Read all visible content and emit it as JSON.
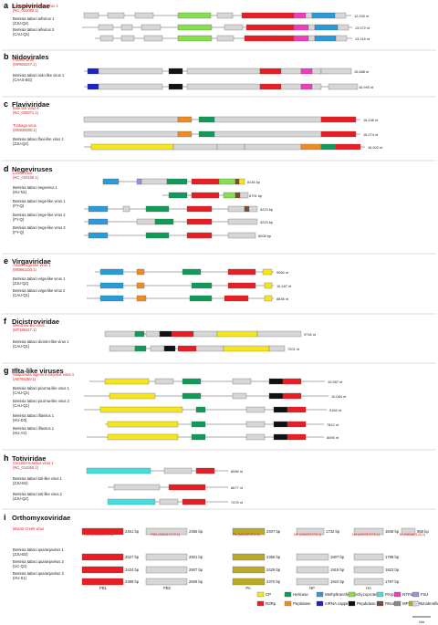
{
  "colors": {
    "CP": "#f5e51e",
    "Helicase": "#119a5a",
    "Methyltransferase": "#2a9ad8",
    "Glycoprotein": "#86df4e",
    "PArp": "#45dede",
    "NTPase": "#ee3fb6",
    "FtsJ": "#9d92d6",
    "PA": "#b8ab27",
    "RdRp": "#ea1c24",
    "Peptidase": "#f08a24",
    "mRNA capping": "#1e22c4",
    "Pepdidase": "#111111",
    "RNase": "#7b4a36",
    "MP": "#888888",
    "Unidentified": "#d6d6d6"
  },
  "panels": [
    {
      "letter": "a",
      "title": "Lispiviridae",
      "rows": [
        {
          "lines": [
            "Sonnie elder shrimp virus 4",
            "(NC_031080.1)"
          ],
          "red": true,
          "length": "12,930 nt"
        },
        {
          "lines": [
            "Bemisia tabaci arlivirus 1",
            "(ZJU-Q2)"
          ],
          "red": false,
          "length": "13,972 nt"
        },
        {
          "lines": [
            "Bemisia tabaci arlivirus 2",
            "(CAU-Q1)"
          ],
          "red": false,
          "length": "13,118 nt"
        }
      ]
    },
    {
      "letter": "b",
      "title": "Nidovirales",
      "rows": [
        {
          "lines": [
            "Fusfish virus",
            "(MF860247.1)"
          ],
          "red": true,
          "length": "15,888 nt"
        },
        {
          "lines": [
            "Bemisia tabaci nido-like virus 1",
            "(CAAS-BG)"
          ],
          "red": false,
          "length": "16,995 nt"
        }
      ]
    },
    {
      "letter": "c",
      "title": "Flaviviridae",
      "rows": [
        {
          "lines": [
            "Bole tick virus 4",
            "(NC_028371.1)"
          ],
          "red": true,
          "length": "16,246 nt"
        },
        {
          "lines": [
            "Trinbago virus",
            "(MN025500.1)"
          ],
          "red": true,
          "length": "16,274 nt"
        },
        {
          "lines": [
            "Bemisia tabaci flavi-like virus 1",
            "(ZJU-Q2)"
          ],
          "red": false,
          "length": "16,902 nt"
        }
      ]
    },
    {
      "letter": "d",
      "title": "Negeviruses",
      "rows": [
        {
          "lines": [
            "Loreto virus",
            "(NC_034158.1)"
          ],
          "red": true,
          "length": "8136 bp"
        },
        {
          "lines": [
            "Bemisia tabaci negevirus 1",
            "(HU-N1)"
          ],
          "red": false,
          "length": "6791 bp"
        },
        {
          "lines": [
            "Bemisia tabaci nege-like virus 1",
            "(FY-Q)"
          ],
          "red": false,
          "length": "9223 bp"
        },
        {
          "lines": [
            "Bemisia tabaci nege-like virus 2",
            "(FY-Q)"
          ],
          "red": false,
          "length": "9229 bp"
        },
        {
          "lines": [
            "Bemisia tabaci nege-like virus 3",
            "(FY-Q)"
          ],
          "red": false,
          "length": "8008 bp"
        }
      ]
    },
    {
      "letter": "e",
      "title": "Virgaviridae",
      "rows": [
        {
          "lines": [
            "Atrato virga-like virus 1",
            "(MN661103.1)"
          ],
          "red": true,
          "length": "9066 nt"
        },
        {
          "lines": [
            "Bemisia tabaci virga-like virus 1",
            "(ZJU-Q2)"
          ],
          "red": false,
          "length": "10,187 nt"
        },
        {
          "lines": [
            "Bemisia tabaci virga-like virus 2",
            "(CAU-Q1)"
          ],
          "red": false,
          "length": "8836 nt"
        }
      ]
    },
    {
      "letter": "f",
      "title": "Dicistroviridae",
      "rows": [
        {
          "lines": [
            "Wenzhou-like virus",
            "(MT186417.1)"
          ],
          "red": true,
          "length": "9716 nt"
        },
        {
          "lines": [
            "Bemisia tabaci dicistro-like virus 1",
            "(CAU-Q1)"
          ],
          "red": false,
          "length": "7201 nt"
        }
      ]
    },
    {
      "letter": "g",
      "title": "Iflta-like viruses",
      "rows": [
        {
          "lines": [
            "Nilaparvata lugens honeydew virus-1",
            "(AB766259.1)"
          ],
          "red": true,
          "length": "10,987 nt"
        },
        {
          "lines": [
            "Bemisia tabaci picorna-like virus 1",
            "(CAU-Q1)"
          ],
          "red": false,
          "length": "10,084 nt"
        },
        {
          "lines": [
            "Bemisia tabaci picorna-like virus 2",
            "(CAU-Q1)"
          ],
          "red": false,
          "length": "9184 nt"
        },
        {
          "lines": [
            "Bemisia tabaci iflavirus 1",
            "(HU-D3)"
          ],
          "red": false,
          "length": "7812 nt"
        },
        {
          "lines": [
            "Bemisia tabaci iflavirus 1",
            "(HU-A2)"
          ],
          "red": false,
          "length": "8495 nt"
        }
      ]
    },
    {
      "letter": "h",
      "title": "Totiviridae",
      "rows": [
        {
          "lines": [
            "Circulifer tenellus virus 1",
            "(NC_014360.1)"
          ],
          "red": true,
          "length": "8086 nt"
        },
        {
          "lines": [
            "Bemisia tabaci toti-like virus 1",
            "(ZJU-B4)"
          ],
          "red": false,
          "length": "6677 nt"
        },
        {
          "lines": [
            "Bemisia tabaci toti-like virus 2",
            "(ZJU-Q2)"
          ],
          "red": false,
          "length": "7478 nt"
        }
      ]
    },
    {
      "letter": "i",
      "title": "Orthomyxoviridae",
      "rows": [
        {
          "lines": [
            "Mason Creek virus"
          ],
          "red": true,
          "segments": [
            "2451 bp",
            "2465 bp",
            "2407 bp",
            "1732 bp",
            "1848 bp",
            "968 bp"
          ]
        },
        {
          "lines": [
            "Bemisia tabaci quaranjavirus 1",
            "(ZJU-B3)"
          ],
          "red": false,
          "segments": [
            "2527 bp",
            "2501 bp",
            "2366 bp",
            "1807 bp",
            "1788 bp"
          ]
        },
        {
          "lines": [
            "Bemisia tabaci quaranjavirus 2",
            "(UC-Q1)"
          ],
          "red": false,
          "segments": [
            "2424 bp",
            "2507 bp",
            "2429 bp",
            "1919 bp",
            "1823 bp"
          ]
        },
        {
          "lines": [
            "Bemisia tabaci quaranjavirus 3",
            "(HU-S1)"
          ],
          "red": false,
          "segments": [
            "2399 bp",
            "2509 bp",
            "2370 bp",
            "1922 bp",
            "1787 bp"
          ]
        }
      ]
    }
  ],
  "ortho_accessions": [
    "PB1 (MK037473.1)",
    "PB2 (MK037472.1)",
    "PA (MK037474.1)",
    "NP (MK037476.1)",
    "HA (MK037478.1)",
    "M (MK460145.1)"
  ],
  "ortho_columns": [
    "PB1",
    "PB2",
    "PA",
    "NP",
    "HA"
  ],
  "legend": [
    {
      "label": "CP",
      "key": "CP"
    },
    {
      "label": "Helicase",
      "key": "Helicase"
    },
    {
      "label": "Methyltransferase",
      "key": "Methyltransferase"
    },
    {
      "label": "Glycoprotein",
      "key": "Glycoprotein"
    },
    {
      "label": "PArp",
      "key": "PArp"
    },
    {
      "label": "NTPase",
      "key": "NTPase"
    },
    {
      "label": "FtsJ",
      "key": "FtsJ"
    },
    {
      "label": "PA",
      "key": "PA"
    },
    {
      "label": "RdRp",
      "key": "RdRp"
    },
    {
      "label": "Peptidase",
      "key": "Peptidase"
    },
    {
      "label": "mRNA capping",
      "key": "mRNA capping"
    },
    {
      "label": "Pepdidase",
      "key": "Pepdidase"
    },
    {
      "label": "RNase",
      "key": "RNase"
    },
    {
      "label": "MP",
      "key": "MP"
    },
    {
      "label": "Unidentified",
      "key": "Unidentified"
    }
  ],
  "scale_label": "1kb"
}
